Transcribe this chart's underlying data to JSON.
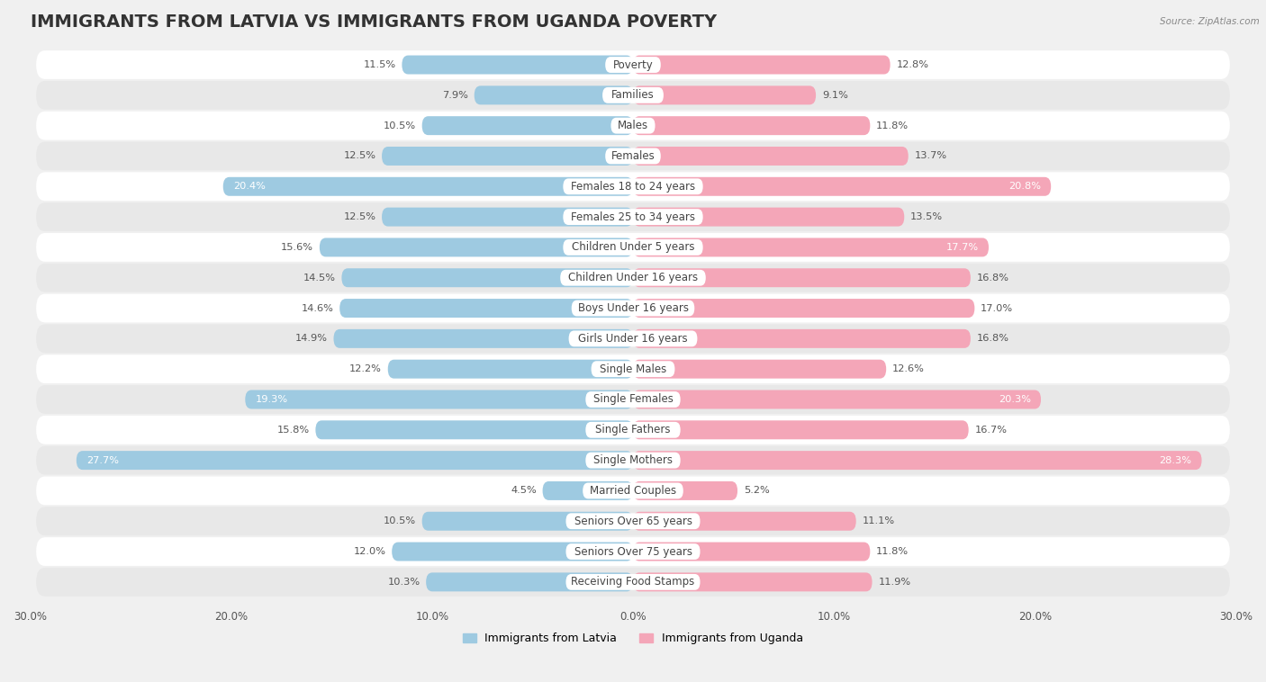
{
  "title": "IMMIGRANTS FROM LATVIA VS IMMIGRANTS FROM UGANDA POVERTY",
  "source": "Source: ZipAtlas.com",
  "categories": [
    "Poverty",
    "Families",
    "Males",
    "Females",
    "Females 18 to 24 years",
    "Females 25 to 34 years",
    "Children Under 5 years",
    "Children Under 16 years",
    "Boys Under 16 years",
    "Girls Under 16 years",
    "Single Males",
    "Single Females",
    "Single Fathers",
    "Single Mothers",
    "Married Couples",
    "Seniors Over 65 years",
    "Seniors Over 75 years",
    "Receiving Food Stamps"
  ],
  "latvia_values": [
    11.5,
    7.9,
    10.5,
    12.5,
    20.4,
    12.5,
    15.6,
    14.5,
    14.6,
    14.9,
    12.2,
    19.3,
    15.8,
    27.7,
    4.5,
    10.5,
    12.0,
    10.3
  ],
  "uganda_values": [
    12.8,
    9.1,
    11.8,
    13.7,
    20.8,
    13.5,
    17.7,
    16.8,
    17.0,
    16.8,
    12.6,
    20.3,
    16.7,
    28.3,
    5.2,
    11.1,
    11.8,
    11.9
  ],
  "latvia_color": "#9ecae1",
  "uganda_color": "#f4a6b8",
  "latvia_label": "Immigrants from Latvia",
  "uganda_label": "Immigrants from Uganda",
  "xlim": 30.0,
  "bar_height": 0.62,
  "background_color": "#f0f0f0",
  "row_even_color": "#ffffff",
  "row_odd_color": "#e8e8e8",
  "title_fontsize": 14,
  "label_fontsize": 8.5,
  "value_fontsize": 8.2,
  "axis_tick_fontsize": 8.5,
  "large_val_threshold": 17.5
}
